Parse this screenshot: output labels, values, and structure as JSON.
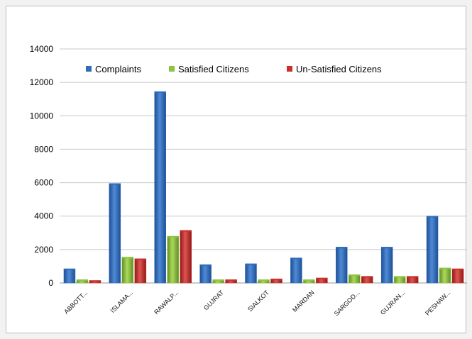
{
  "chart_data": {
    "type": "bar",
    "title": "",
    "xlabel": "",
    "ylabel": "",
    "categories": [
      "ABBOTT...",
      "ISLAMA...",
      "RAWALP...",
      "GUJRAT",
      "SIALKOT",
      "MARDAN",
      "SARGOD...",
      "GUJRAN...",
      "PESHAW..."
    ],
    "series": [
      {
        "name": "Complaints",
        "color": "#2e6cbc",
        "values": [
          850,
          5950,
          11450,
          1100,
          1150,
          1500,
          2150,
          2150,
          4000
        ]
      },
      {
        "name": "Satisfied Citizens",
        "color": "#8fc43f",
        "values": [
          200,
          1550,
          2800,
          200,
          200,
          200,
          500,
          400,
          900
        ]
      },
      {
        "name": "Un-Satisfied Citizens",
        "color": "#c9302c",
        "values": [
          150,
          1450,
          3150,
          200,
          250,
          300,
          400,
          400,
          850
        ]
      }
    ],
    "ylim": [
      0,
      14000
    ],
    "yticks": [
      0,
      2000,
      4000,
      6000,
      8000,
      10000,
      12000,
      14000
    ],
    "grid": true,
    "legend_position": "top-left"
  }
}
